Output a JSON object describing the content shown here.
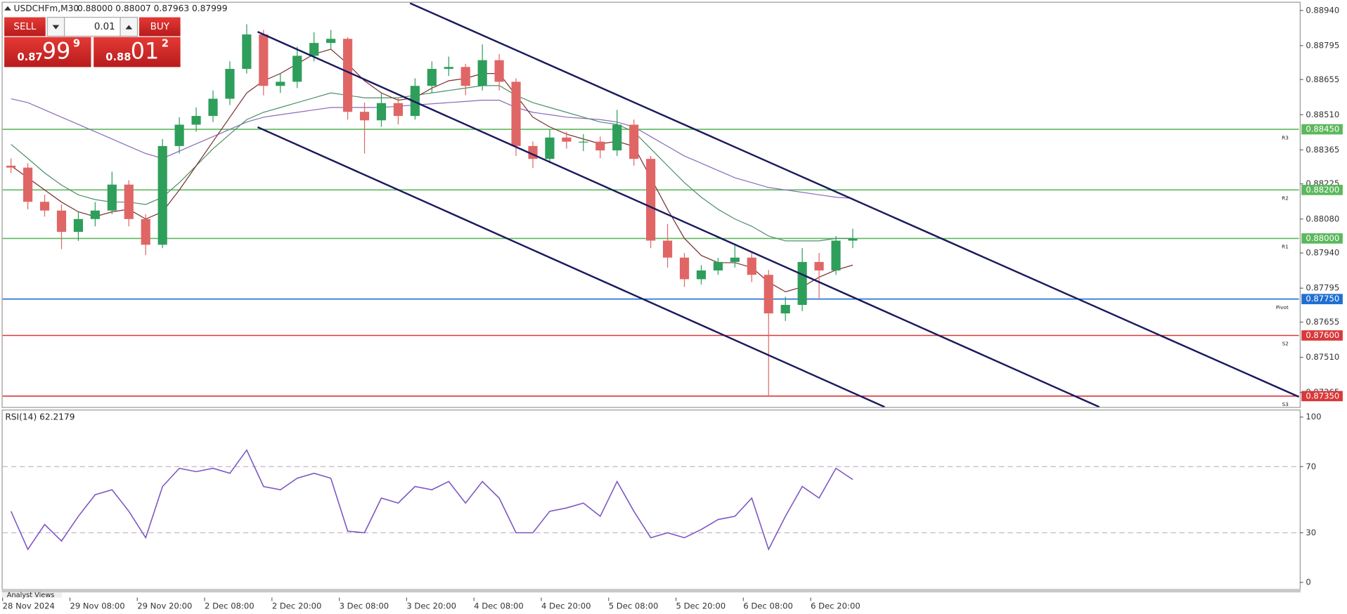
{
  "header": {
    "symbol": "USDCHFm,M30",
    "quote": "0.88000 0.88007 0.87963 0.87999"
  },
  "trade_panel": {
    "sell_label": "SELL",
    "lot": "0.01",
    "buy_label": "BUY",
    "bid": {
      "prefix": "0.87",
      "big": "99",
      "small": "9"
    },
    "ask": {
      "prefix": "0.88",
      "big": "01",
      "small": "2"
    }
  },
  "footer_tab": "Analyst Views",
  "chart_data": [
    {
      "type": "candlestick",
      "xlim": [
        0,
        77
      ],
      "ylim": [
        0.87305,
        0.88972
      ],
      "yticks": [
        {
          "value": 0.8894,
          "label": "0.88940"
        },
        {
          "value": 0.88795,
          "label": "0.88795"
        },
        {
          "value": 0.88655,
          "label": "0.88655"
        },
        {
          "value": 0.8851,
          "label": "0.88510"
        },
        {
          "value": 0.88365,
          "label": "0.88365"
        },
        {
          "value": 0.88225,
          "label": "0.88225"
        },
        {
          "value": 0.8808,
          "label": "0.88080"
        },
        {
          "value": 0.8794,
          "label": "0.87940"
        },
        {
          "value": 0.87795,
          "label": "0.87795"
        },
        {
          "value": 0.87655,
          "label": "0.87655"
        },
        {
          "value": 0.8751,
          "label": "0.87510"
        },
        {
          "value": 0.87365,
          "label": "0.87365"
        }
      ],
      "up_color": "#2e9e5b",
      "down_color": "#e06666",
      "open": [
        0.883,
        0.88292,
        0.88151,
        0.88115,
        0.88027,
        0.8808,
        0.88115,
        0.88222,
        0.8808,
        0.87974,
        0.88381,
        0.88469,
        0.88505,
        0.88576,
        0.88699,
        0.88841,
        0.88629,
        0.88646,
        0.88753,
        0.88806,
        0.88823,
        0.88522,
        0.88487,
        0.88558,
        0.88505,
        0.88629,
        0.88699,
        0.88707,
        0.88629,
        0.88735,
        0.88646,
        0.88381,
        0.88328,
        0.88416,
        0.88399,
        0.88399,
        0.88363,
        0.88469,
        0.88328,
        0.87991,
        0.87921,
        0.87832,
        0.87868,
        0.87903,
        0.87921,
        0.8785,
        0.87691,
        0.87726,
        0.87903,
        0.87868,
        0.87991
      ],
      "high": [
        0.8833,
        0.8831,
        0.8818,
        0.8814,
        0.8811,
        0.8815,
        0.88275,
        0.8824,
        0.881,
        0.8841,
        0.885,
        0.8854,
        0.8861,
        0.8873,
        0.88883,
        0.8886,
        0.8868,
        0.8879,
        0.8885,
        0.8886,
        0.8883,
        0.8856,
        0.886,
        0.8858,
        0.8866,
        0.8873,
        0.8875,
        0.8872,
        0.888,
        0.8876,
        0.8866,
        0.884,
        0.8845,
        0.8844,
        0.8843,
        0.8842,
        0.8853,
        0.8849,
        0.8834,
        0.8806,
        0.8794,
        0.8789,
        0.8792,
        0.8797,
        0.8794,
        0.8787,
        0.8776,
        0.8796,
        0.8794,
        0.8801,
        0.8804
      ],
      "low": [
        0.8827,
        0.8812,
        0.8809,
        0.87956,
        0.8799,
        0.8805,
        0.881,
        0.8805,
        0.87931,
        0.8796,
        0.8835,
        0.8844,
        0.8848,
        0.8855,
        0.8868,
        0.8859,
        0.886,
        0.8862,
        0.8873,
        0.8878,
        0.8849,
        0.8835,
        0.8846,
        0.8847,
        0.8849,
        0.886,
        0.8867,
        0.8859,
        0.8861,
        0.8861,
        0.8834,
        0.8829,
        0.8831,
        0.8837,
        0.8836,
        0.8833,
        0.8834,
        0.883,
        0.8796,
        0.8788,
        0.878,
        0.8781,
        0.8785,
        0.8788,
        0.8782,
        0.87347,
        0.8766,
        0.877,
        0.8775,
        0.8785,
        0.8796
      ],
      "close": [
        0.88292,
        0.88151,
        0.88115,
        0.88027,
        0.8808,
        0.88115,
        0.88222,
        0.8808,
        0.87974,
        0.88381,
        0.88469,
        0.88505,
        0.88576,
        0.88699,
        0.88841,
        0.88629,
        0.88646,
        0.88753,
        0.88806,
        0.88823,
        0.88522,
        0.88487,
        0.88558,
        0.88505,
        0.88629,
        0.88699,
        0.88707,
        0.88629,
        0.88735,
        0.88646,
        0.88381,
        0.88328,
        0.88416,
        0.88399,
        0.88399,
        0.88363,
        0.88469,
        0.88328,
        0.87991,
        0.87921,
        0.87832,
        0.87868,
        0.87903,
        0.87921,
        0.8785,
        0.87691,
        0.87726,
        0.87903,
        0.87868,
        0.87991,
        0.87999
      ],
      "ma": [
        {
          "color": "#8a6bb8",
          "values": [
            0.88576,
            0.8856,
            0.8853,
            0.885,
            0.8847,
            0.8844,
            0.8841,
            0.8838,
            0.8835,
            0.8833,
            0.8836,
            0.8839,
            0.8842,
            0.8845,
            0.8848,
            0.885,
            0.8851,
            0.8852,
            0.8853,
            0.8854,
            0.8854,
            0.8854,
            0.8854,
            0.88545,
            0.8855,
            0.88555,
            0.8856,
            0.88565,
            0.8857,
            0.8857,
            0.8854,
            0.8852,
            0.8851,
            0.885,
            0.88495,
            0.8849,
            0.8848,
            0.8846,
            0.8842,
            0.8838,
            0.8834,
            0.8831,
            0.8828,
            0.8825,
            0.8823,
            0.8821,
            0.882,
            0.8819,
            0.8818,
            0.8817,
            0.88165
          ]
        },
        {
          "color": "#4f8f6a",
          "values": [
            0.88388,
            0.8833,
            0.8827,
            0.8822,
            0.8818,
            0.8816,
            0.8815,
            0.8815,
            0.8814,
            0.8817,
            0.8823,
            0.883,
            0.8837,
            0.8843,
            0.8849,
            0.8852,
            0.8854,
            0.8856,
            0.8858,
            0.886,
            0.8859,
            0.8858,
            0.8858,
            0.8858,
            0.8859,
            0.886,
            0.8861,
            0.8862,
            0.8863,
            0.8863,
            0.8859,
            0.8856,
            0.8854,
            0.8852,
            0.885,
            0.8848,
            0.8847,
            0.8844,
            0.8837,
            0.883,
            0.8823,
            0.8817,
            0.8812,
            0.8808,
            0.8805,
            0.8801,
            0.8799,
            0.8799,
            0.8799,
            0.88,
            0.88
          ]
        },
        {
          "color": "#7a2f2f",
          "values": [
            0.883,
            0.8825,
            0.882,
            0.8815,
            0.8811,
            0.8809,
            0.8811,
            0.8812,
            0.8808,
            0.8811,
            0.882,
            0.883,
            0.884,
            0.885,
            0.886,
            0.8865,
            0.8868,
            0.8872,
            0.8876,
            0.8878,
            0.8872,
            0.8865,
            0.886,
            0.8857,
            0.8858,
            0.8862,
            0.8865,
            0.8866,
            0.8868,
            0.8868,
            0.8859,
            0.885,
            0.8846,
            0.8843,
            0.8841,
            0.8839,
            0.884,
            0.8838,
            0.8825,
            0.8812,
            0.88,
            0.8793,
            0.879,
            0.879,
            0.8788,
            0.8782,
            0.8778,
            0.878,
            0.8784,
            0.8787,
            0.8789
          ]
        }
      ],
      "levels": [
        {
          "name": "R3",
          "value": 0.8845,
          "value_label": "0.88450",
          "color": "#5cb85c"
        },
        {
          "name": "R2",
          "value": 0.882,
          "value_label": "0.88200",
          "color": "#5cb85c"
        },
        {
          "name": "R1",
          "value": 0.88,
          "value_label": "0.88000",
          "color": "#5cb85c"
        },
        {
          "name": "Pivot",
          "value": 0.8775,
          "value_label": "0.87750",
          "color": "#1f6fd1"
        },
        {
          "name": "S2",
          "value": 0.876,
          "value_label": "0.87600",
          "color": "#d9383a"
        },
        {
          "name": "S3",
          "value": 0.8735,
          "value_label": "0.87350",
          "color": "#d9383a"
        }
      ],
      "trendline_color": "#1a1a5e",
      "trendlines": [
        {
          "x": [
            24.2,
            77
          ],
          "y": [
            0.8897,
            0.87347
          ]
        },
        {
          "x": [
            15.15,
            65.15
          ],
          "y": [
            0.88852,
            0.87305
          ]
        },
        {
          "x": [
            15.15,
            52.4
          ],
          "y": [
            0.88459,
            0.87305
          ]
        }
      ]
    },
    {
      "type": "line",
      "title": "RSI(14) 62.2179",
      "color": "#7e57c2",
      "xlim": [
        0,
        77
      ],
      "ylim": [
        -4,
        104
      ],
      "yticks": [
        0,
        30,
        70,
        100
      ],
      "ref_lines": [
        30,
        70
      ],
      "values": [
        43,
        20,
        35,
        25,
        40,
        53,
        56,
        43,
        27,
        58,
        69,
        67,
        69,
        66,
        80,
        58,
        56,
        63,
        66,
        63,
        31,
        30,
        51,
        48,
        58,
        56,
        61,
        48,
        61,
        51,
        30,
        30,
        43,
        45,
        48,
        40,
        61,
        43,
        27,
        30,
        27,
        32,
        38,
        40,
        51,
        20,
        40,
        58,
        51,
        69,
        62.2179
      ],
      "xticks": [
        {
          "value": 0,
          "label": "28 Nov 2024"
        },
        {
          "value": 4,
          "label": "29 Nov 08:00"
        },
        {
          "value": 8,
          "label": "29 Nov 20:00"
        },
        {
          "value": 12,
          "label": "2 Dec 08:00"
        },
        {
          "value": 16,
          "label": "2 Dec 20:00"
        },
        {
          "value": 20,
          "label": "3 Dec 08:00"
        },
        {
          "value": 24,
          "label": "3 Dec 20:00"
        },
        {
          "value": 28,
          "label": "4 Dec 08:00"
        },
        {
          "value": 32,
          "label": "4 Dec 20:00"
        },
        {
          "value": 36,
          "label": "5 Dec 08:00"
        },
        {
          "value": 40,
          "label": "5 Dec 20:00"
        },
        {
          "value": 44,
          "label": "6 Dec 08:00"
        },
        {
          "value": 48,
          "label": "6 Dec 20:00"
        }
      ]
    }
  ]
}
